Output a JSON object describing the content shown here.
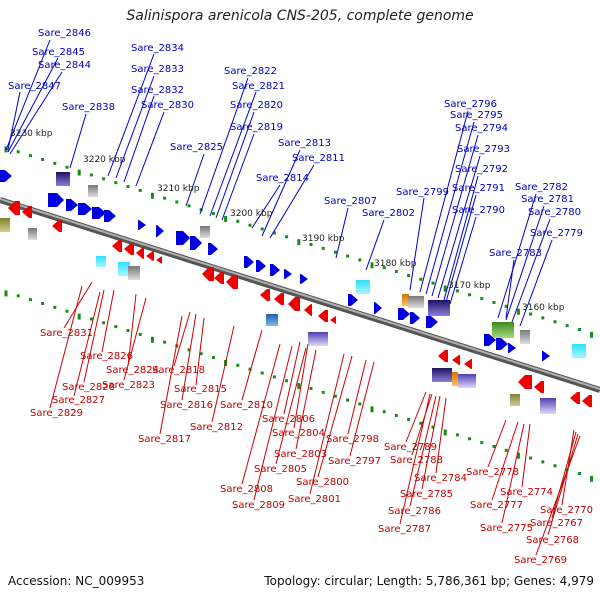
{
  "title": "Salinispora arenicola CNS-205, complete genome",
  "footer": {
    "accession": "Accession: NC_009953",
    "summary": "Topology: circular; Length: 5,786,361 bp; Genes: 4,979"
  },
  "colors": {
    "forward": "#0000dd",
    "reverse": "#ee0000",
    "backbone": "#8a8a8a",
    "tick": "#1a8a1a"
  },
  "kbp_labels": [
    "3230 kbp",
    "3220 kbp",
    "3210 kbp",
    "3200 kbp",
    "3190 kbp",
    "3180 kbp",
    "3170 kbp",
    "3160 kbp"
  ],
  "forward_labels": [
    "Sare_2846",
    "Sare_2845",
    "Sare_2844",
    "Sare_2847",
    "Sare_2838",
    "Sare_2834",
    "Sare_2833",
    "Sare_2832",
    "Sare_2830",
    "Sare_2822",
    "Sare_2821",
    "Sare_2820",
    "Sare_2819",
    "Sare_2825",
    "Sare_2813",
    "Sare_2811",
    "Sare_2814",
    "Sare_2807",
    "Sare_2802",
    "Sare_2799",
    "Sare_2796",
    "Sare_2795",
    "Sare_2794",
    "Sare_2793",
    "Sare_2792",
    "Sare_2791",
    "Sare_2790",
    "Sare_2782",
    "Sare_2781",
    "Sare_2780",
    "Sare_2779",
    "Sare_2783"
  ],
  "reverse_labels": [
    "Sare_2831",
    "Sare_2826",
    "Sare_2824",
    "Sare_2823",
    "Sare_2828",
    "Sare_2827",
    "Sare_2829",
    "Sare_2818",
    "Sare_2815",
    "Sare_2816",
    "Sare_2817",
    "Sare_2812",
    "Sare_2810",
    "Sare_2806",
    "Sare_2804",
    "Sare_2803",
    "Sare_2805",
    "Sare_2808",
    "Sare_2809",
    "Sare_2798",
    "Sare_2797",
    "Sare_2800",
    "Sare_2801",
    "Sare_2789",
    "Sare_2788",
    "Sare_2784",
    "Sare_2785",
    "Sare_2786",
    "Sare_2787",
    "Sare_2778",
    "Sare_2774",
    "Sare_2777",
    "Sare_2775",
    "Sare_2770",
    "Sare_2767",
    "Sare_2768",
    "Sare_2769"
  ]
}
